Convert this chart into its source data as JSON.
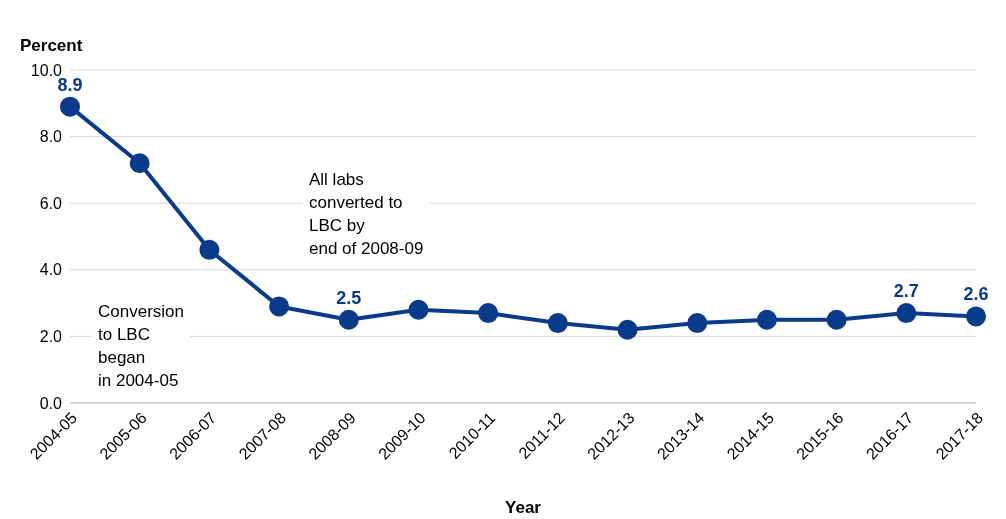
{
  "chart_data": {
    "type": "line",
    "xlabel": "Year",
    "ylabel": "Percent",
    "categories": [
      "2004-05",
      "2005-06",
      "2006-07",
      "2007-08",
      "2008-09",
      "2009-10",
      "2010-11",
      "2011-12",
      "2012-13",
      "2013-14",
      "2014-15",
      "2015-16",
      "2016-17",
      "2017-18"
    ],
    "series": [
      {
        "color": "#0a3a8a",
        "values": [
          8.9,
          7.2,
          4.6,
          2.9,
          2.5,
          2.8,
          2.7,
          2.4,
          2.2,
          2.4,
          2.5,
          2.5,
          2.7,
          2.6
        ],
        "value_labels": [
          "8.9",
          null,
          null,
          null,
          "2.5",
          null,
          null,
          null,
          null,
          null,
          null,
          null,
          "2.7",
          "2.6"
        ]
      }
    ],
    "ylim": [
      0,
      10
    ],
    "yticks": [
      {
        "value": 0,
        "label": "0.0"
      },
      {
        "value": 2,
        "label": "2.0"
      },
      {
        "value": 4,
        "label": "4.0"
      },
      {
        "value": 6,
        "label": "6.0"
      },
      {
        "value": 8,
        "label": "8.0"
      },
      {
        "value": 10,
        "label": "10.0"
      }
    ],
    "grid": "y",
    "marker": "circle",
    "line_style": "solid",
    "legend": false,
    "annotations": [
      "Conversion\nto LBC\nbegan\nin 2004-05",
      "All labs\nconverted to\nLBC by\nend of 2008-09"
    ]
  }
}
